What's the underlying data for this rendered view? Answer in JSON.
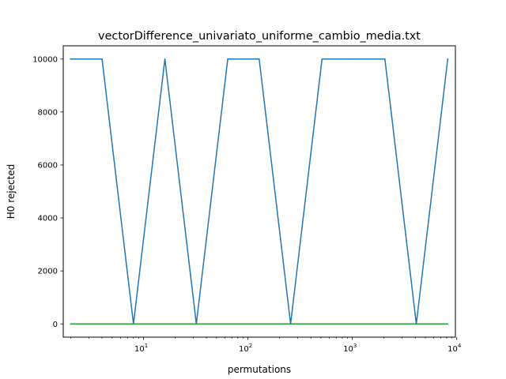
{
  "chart_data": {
    "type": "line",
    "title": "vectorDifference_univariato_uniforme_cambio_media.txt",
    "xlabel": "permutations",
    "ylabel": "H0 rejected",
    "xscale": "log",
    "xlim": [
      1.7,
      9700
    ],
    "ylim": [
      -500,
      10500
    ],
    "yticks": [
      0,
      2000,
      4000,
      6000,
      8000,
      10000
    ],
    "xticks": [
      {
        "base": "10",
        "exp": "1",
        "value": 10
      },
      {
        "base": "10",
        "exp": "2",
        "value": 100
      },
      {
        "base": "10",
        "exp": "3",
        "value": 1000
      },
      {
        "base": "10",
        "exp": "4",
        "value": 10000
      }
    ],
    "grid": false,
    "legend": "none",
    "series": [
      {
        "color": "#1f77b4",
        "x": [
          2,
          4,
          8,
          16,
          32,
          64,
          128,
          256,
          512,
          1024,
          2048,
          4096,
          8192
        ],
        "y": [
          10000,
          10000,
          0,
          10000,
          0,
          10000,
          10000,
          0,
          10000,
          10000,
          10000,
          0,
          10000
        ]
      },
      {
        "color": "#2ca02c",
        "x": [
          2,
          4,
          8,
          16,
          32,
          64,
          128,
          256,
          512,
          1024,
          2048,
          4096,
          8192
        ],
        "y": [
          0,
          0,
          0,
          0,
          0,
          0,
          0,
          0,
          0,
          0,
          0,
          0,
          0
        ]
      }
    ]
  }
}
